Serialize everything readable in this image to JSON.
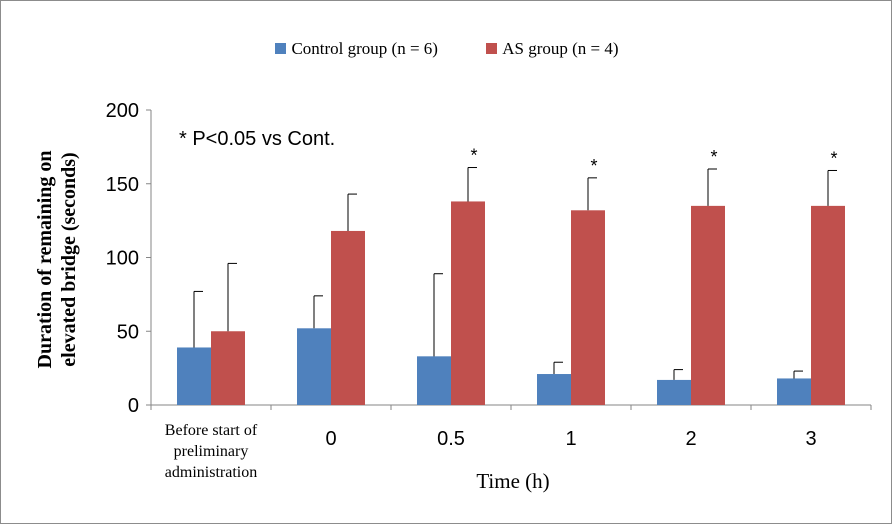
{
  "chart_data": {
    "type": "bar",
    "title": "",
    "xlabel": "Time (h)",
    "ylabel": [
      "Duration of remaining on",
      "elevated bridge (seconds)"
    ],
    "ylim": [
      0,
      200
    ],
    "yticks": [
      "0",
      "50",
      "100",
      "150",
      "200"
    ],
    "categories": [
      [
        "Before start of",
        "preliminary",
        "administration"
      ],
      [
        "0"
      ],
      [
        "0.5"
      ],
      [
        "1"
      ],
      [
        "2"
      ],
      [
        "3"
      ]
    ],
    "series": [
      {
        "name": "Control group (n = 6)",
        "color": "#4f81bd",
        "values": [
          39,
          52,
          33,
          21,
          17,
          18
        ],
        "errors": [
          38,
          22,
          56,
          8,
          7,
          5
        ]
      },
      {
        "name": "AS group (n = 4)",
        "color": "#c0504d",
        "values": [
          50,
          118,
          138,
          132,
          135,
          135
        ],
        "errors": [
          46,
          25,
          23,
          22,
          25,
          24
        ]
      }
    ],
    "significance_marks": [
      "",
      "",
      "*",
      "*",
      "*",
      "*"
    ],
    "annotation": "* P<0.05 vs Cont.",
    "legend_position": "top-center",
    "grid": false
  }
}
